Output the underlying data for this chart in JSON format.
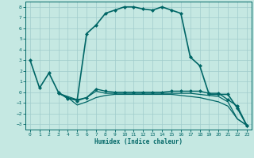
{
  "xlabel": "Humidex (Indice chaleur)",
  "xlim": [
    -0.5,
    23.5
  ],
  "ylim": [
    -3.5,
    8.5
  ],
  "xticks": [
    0,
    1,
    2,
    3,
    4,
    5,
    6,
    7,
    8,
    9,
    10,
    11,
    12,
    13,
    14,
    15,
    16,
    17,
    18,
    19,
    20,
    21,
    22,
    23
  ],
  "yticks": [
    -3,
    -2,
    -1,
    0,
    1,
    2,
    3,
    4,
    5,
    6,
    7,
    8
  ],
  "bg_color": "#c5e8e2",
  "line_color": "#006666",
  "grid_color": "#a0cccc",
  "lines": [
    {
      "x": [
        0,
        1,
        2,
        3,
        4,
        5,
        6,
        7,
        8,
        9,
        10,
        11,
        12,
        13,
        14,
        15,
        16,
        17,
        18,
        19,
        20,
        21,
        22,
        23
      ],
      "y": [
        3.0,
        0.4,
        1.8,
        0.0,
        -0.6,
        -0.7,
        5.5,
        6.3,
        7.4,
        7.7,
        8.0,
        8.0,
        7.8,
        7.7,
        8.0,
        7.7,
        7.4,
        3.3,
        2.5,
        -0.2,
        -0.2,
        -0.2,
        -1.5,
        -3.1
      ],
      "marker": "D",
      "markersize": 2.0,
      "linewidth": 1.2
    },
    {
      "x": [
        3,
        4,
        5,
        6,
        7,
        8,
        9,
        10,
        11,
        12,
        13,
        14,
        15,
        16,
        17,
        18,
        19,
        20,
        21,
        22,
        23
      ],
      "y": [
        -0.1,
        -0.5,
        -0.8,
        -0.5,
        0.3,
        0.1,
        0.0,
        0.0,
        0.0,
        0.0,
        0.0,
        0.0,
        0.1,
        0.1,
        0.1,
        0.1,
        -0.1,
        -0.1,
        -0.7,
        -1.3,
        -3.1
      ],
      "marker": "D",
      "markersize": 2.0,
      "linewidth": 1.0
    },
    {
      "x": [
        3,
        4,
        5,
        6,
        7,
        8,
        9,
        10,
        11,
        12,
        13,
        14,
        15,
        16,
        17,
        18,
        19,
        20,
        21,
        22,
        23
      ],
      "y": [
        -0.1,
        -0.4,
        -0.7,
        -0.5,
        0.1,
        -0.1,
        -0.1,
        -0.1,
        -0.1,
        -0.1,
        -0.1,
        -0.1,
        -0.1,
        -0.1,
        -0.1,
        -0.2,
        -0.3,
        -0.4,
        -0.9,
        -2.5,
        -3.1
      ],
      "marker": null,
      "markersize": 0,
      "linewidth": 0.9
    },
    {
      "x": [
        3,
        4,
        5,
        6,
        7,
        8,
        9,
        10,
        11,
        12,
        13,
        14,
        15,
        16,
        17,
        18,
        19,
        20,
        21,
        22,
        23
      ],
      "y": [
        -0.1,
        -0.5,
        -1.2,
        -0.9,
        -0.5,
        -0.3,
        -0.2,
        -0.2,
        -0.2,
        -0.2,
        -0.2,
        -0.2,
        -0.2,
        -0.3,
        -0.4,
        -0.5,
        -0.7,
        -0.9,
        -1.3,
        -2.5,
        -3.1
      ],
      "marker": null,
      "markersize": 0,
      "linewidth": 0.9
    }
  ]
}
